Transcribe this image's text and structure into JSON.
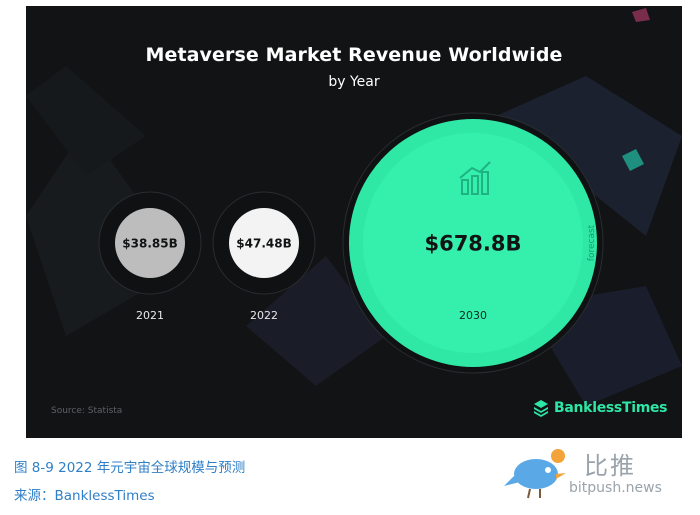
{
  "chart_data": {
    "type": "bubble",
    "title": "Metaverse Market Revenue Worldwide",
    "subtitle": "by Year",
    "categories": [
      "2021",
      "2022",
      "2030"
    ],
    "values": [
      38.85,
      47.48,
      678.8
    ],
    "value_labels": [
      "$38.85B",
      "$47.48B",
      "$678.8B"
    ],
    "annotation": "forecast",
    "colors": [
      "#bdbdbd",
      "#f3f3f3",
      "#2fe8a6"
    ]
  },
  "source_text": "Source: Statista",
  "brand_name": "BanklessTimes",
  "caption": {
    "figure": "图 8-9 2022 年元宇宙全球规模与预测",
    "source": "来源：BanklessTimes"
  },
  "watermark": {
    "cn": "比推",
    "en": "bitpush.news"
  },
  "icons": {
    "chart": "growth-chart-icon",
    "brand_logo": "bankless-logo-icon",
    "watermark": "bird-icon"
  }
}
